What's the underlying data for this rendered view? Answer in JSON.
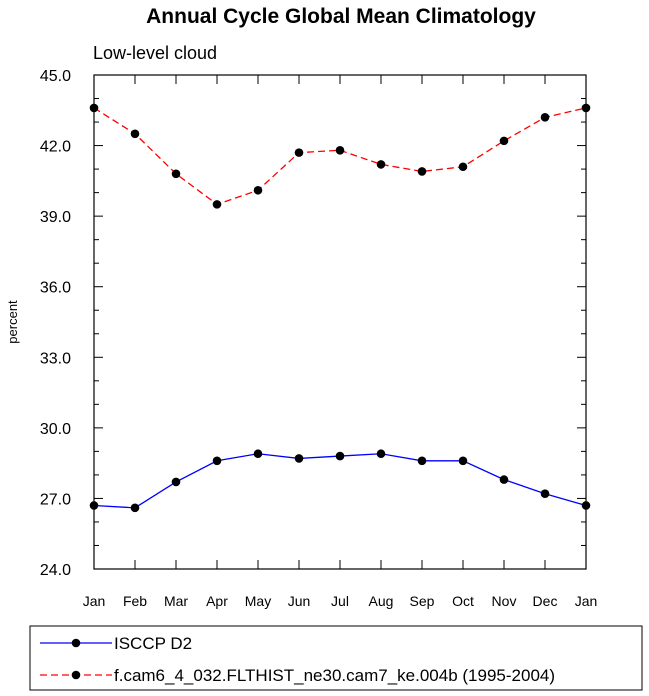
{
  "chart_data": {
    "type": "line",
    "title": "Annual Cycle Global Mean Climatology",
    "subtitle": "Low-level cloud",
    "xlabel": "",
    "ylabel": "percent",
    "ylim": [
      24.0,
      45.0
    ],
    "yticks": [
      "24.0",
      "27.0",
      "30.0",
      "33.0",
      "36.0",
      "39.0",
      "42.0",
      "45.0"
    ],
    "categories": [
      "Jan",
      "Feb",
      "Mar",
      "Apr",
      "May",
      "Jun",
      "Jul",
      "Aug",
      "Sep",
      "Oct",
      "Nov",
      "Dec",
      "Jan"
    ],
    "grid": false,
    "legend_position": "bottom",
    "series": [
      {
        "name": "ISCCP D2",
        "color": "#0000ff",
        "dash": "solid",
        "values": [
          26.7,
          26.6,
          27.7,
          28.6,
          28.9,
          28.7,
          28.8,
          28.9,
          28.6,
          28.6,
          27.8,
          27.2,
          26.7
        ]
      },
      {
        "name": "f.cam6_4_032.FLTHIST_ne30.cam7_ke.004b (1995-2004)",
        "color": "#ff0000",
        "dash": "dashed",
        "values": [
          43.6,
          42.5,
          40.8,
          39.5,
          40.1,
          41.7,
          41.8,
          41.2,
          40.9,
          41.1,
          42.2,
          43.2,
          43.6
        ]
      }
    ]
  }
}
